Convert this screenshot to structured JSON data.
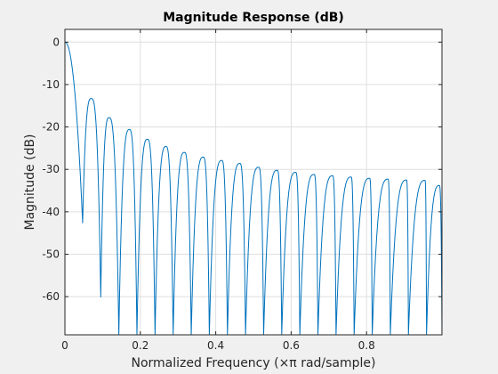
{
  "chart_data": {
    "type": "line",
    "title": "Magnitude Response (dB)",
    "xlabel": "Normalized Frequency (×π rad/sample)",
    "ylabel": "Magnitude (dB)",
    "xlim": [
      0,
      1
    ],
    "ylim": [
      -69,
      3
    ],
    "xticks": [
      0,
      0.2,
      0.4,
      0.6,
      0.8
    ],
    "xtick_labels": [
      "0",
      "0.2",
      "0.4",
      "0.6",
      "0.8"
    ],
    "yticks": [
      0,
      -10,
      -20,
      -30,
      -40,
      -50,
      -60
    ],
    "ytick_labels": [
      "0",
      "-10",
      "-20",
      "-30",
      "-40",
      "-50",
      "-60"
    ],
    "grid": true,
    "line_color": "#0072bd",
    "series": [
      {
        "lobe_peaks": {
          "x": [
            0,
            0.07,
            0.117,
            0.171,
            0.219,
            0.268,
            0.317,
            0.367,
            0.416,
            0.464,
            0.514,
            0.563,
            0.612,
            0.661,
            0.71,
            0.759,
            0.808,
            0.857,
            0.906,
            0.955,
            0.993
          ],
          "y": [
            0,
            -13.3,
            -17.8,
            -20.6,
            -22.9,
            -24.6,
            -26,
            -27.1,
            -27.9,
            -28.6,
            -29.5,
            -30.2,
            -30.7,
            -31.2,
            -31.5,
            -31.8,
            -32.1,
            -32.3,
            -32.5,
            -32.6,
            -33.8
          ]
        },
        "nulls": {
          "x": [
            0.047,
            0.095,
            0.143,
            0.191,
            0.239,
            0.287,
            0.335,
            0.383,
            0.431,
            0.479,
            0.527,
            0.575,
            0.623,
            0.671,
            0.719,
            0.767,
            0.815,
            0.863,
            0.911,
            0.959
          ],
          "y": [
            -42.6,
            -60.1,
            -69,
            -69,
            -69,
            -69,
            -69,
            -69,
            -69,
            -69,
            -69,
            -69,
            -69,
            -69,
            -69,
            -69,
            -69,
            -69,
            -69,
            -69
          ]
        },
        "end": {
          "x": 1,
          "y": -69
        }
      }
    ]
  }
}
